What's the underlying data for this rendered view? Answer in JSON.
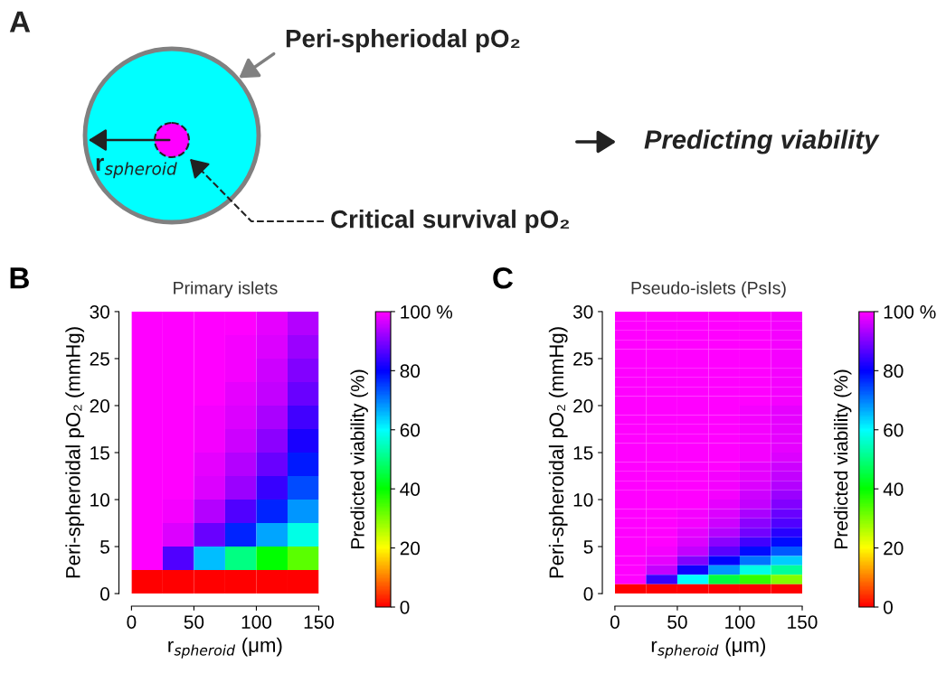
{
  "chart_data": [
    {
      "type": "other",
      "annotations": [
        "A",
        "Peri-spheriodal pO₂",
        "r$_{spheroid}$",
        "Critical survival pO₂",
        "Predicting viability"
      ]
    },
    {
      "type": "heatmap",
      "title": "Primary islets",
      "xlabel": "r$_{spheroid}$ (μm)",
      "ylabel": "Peri-spheroidal pO₂ (mmHg)",
      "clabel": "Predicted viability (%)",
      "annotations": [
        "B"
      ],
      "cells": [
        [
          100,
          100,
          100,
          100,
          98,
          94
        ],
        [
          100,
          100,
          100,
          99,
          97,
          92
        ],
        [
          100,
          100,
          100,
          99,
          96,
          90
        ],
        [
          100,
          100,
          100,
          98,
          95,
          88
        ],
        [
          100,
          100,
          99,
          97,
          93,
          85
        ],
        [
          100,
          100,
          99,
          96,
          91,
          82
        ],
        [
          100,
          100,
          98,
          94,
          88,
          78
        ],
        [
          100,
          100,
          97,
          92,
          84,
          74
        ],
        [
          100,
          99,
          94,
          86,
          77,
          68
        ],
        [
          100,
          97,
          88,
          77,
          67,
          58
        ],
        [
          100,
          86,
          65,
          50,
          40,
          33
        ],
        [
          0,
          0,
          0,
          0,
          0,
          0
        ]
      ],
      "colors": [
        "#ff0000",
        "#ffff00",
        "#00ff00",
        "#00ffff",
        "#0000ff",
        "#ff00ff"
      ],
      "xlim": [
        0,
        150
      ],
      "xticks": [
        0,
        50,
        100,
        150
      ],
      "ylim": [
        0,
        30
      ],
      "yticks": [
        0,
        5,
        10,
        15,
        20,
        25,
        30
      ],
      "clim": [
        0,
        100
      ],
      "cticks": [
        0,
        20,
        40,
        60,
        80,
        {
          "value": 100,
          "label": "100 %"
        }
      ]
    },
    {
      "type": "heatmap",
      "title": "Pseudo-islets (PsIs)",
      "xlabel": "r$_{spheroid}$ (μm)",
      "ylabel": "Peri-spheroidal pO₂ (mmHg)",
      "clabel": "Predicted viability (%)",
      "annotations": [
        "C"
      ],
      "cells": [
        [
          100,
          100,
          100,
          100,
          100,
          99
        ],
        [
          100,
          100,
          100,
          100,
          100,
          99
        ],
        [
          100,
          100,
          100,
          100,
          100,
          99
        ],
        [
          100,
          100,
          100,
          100,
          100,
          99
        ],
        [
          100,
          100,
          100,
          100,
          100,
          99
        ],
        [
          100,
          100,
          100,
          100,
          100,
          99
        ],
        [
          100,
          100,
          100,
          100,
          100,
          99
        ],
        [
          100,
          100,
          100,
          100,
          100,
          99
        ],
        [
          100,
          100,
          100,
          100,
          100,
          99
        ],
        [
          100,
          100,
          100,
          100,
          100,
          99
        ],
        [
          100,
          100,
          100,
          100,
          99,
          98
        ],
        [
          100,
          100,
          100,
          100,
          99,
          98
        ],
        [
          100,
          100,
          100,
          100,
          99,
          98
        ],
        [
          100,
          100,
          100,
          100,
          99,
          98
        ],
        [
          100,
          100,
          100,
          100,
          99,
          98
        ],
        [
          100,
          100,
          100,
          100,
          99,
          97
        ],
        [
          100,
          100,
          100,
          100,
          98,
          96
        ],
        [
          100,
          100,
          100,
          99,
          98,
          95
        ],
        [
          100,
          100,
          100,
          99,
          97,
          94
        ],
        [
          100,
          100,
          100,
          99,
          96,
          92
        ],
        [
          100,
          100,
          100,
          98,
          95,
          90
        ],
        [
          100,
          100,
          99,
          97,
          93,
          88
        ],
        [
          100,
          100,
          99,
          96,
          91,
          86
        ],
        [
          100,
          100,
          98,
          94,
          89,
          83
        ],
        [
          100,
          100,
          97,
          91,
          85,
          79
        ],
        [
          100,
          99,
          95,
          87,
          79,
          73
        ],
        [
          100,
          98,
          90,
          80,
          71,
          64
        ],
        [
          100,
          95,
          81,
          68,
          58,
          52
        ],
        [
          100,
          84,
          60,
          45,
          36,
          30
        ],
        [
          0,
          0,
          0,
          0,
          0,
          0
        ]
      ],
      "colors": [
        "#ff0000",
        "#ffff00",
        "#00ff00",
        "#00ffff",
        "#0000ff",
        "#ff00ff"
      ],
      "xlim": [
        0,
        150
      ],
      "xticks": [
        0,
        50,
        100,
        150
      ],
      "ylim": [
        0,
        30
      ],
      "yticks": [
        0,
        5,
        10,
        15,
        20,
        25,
        30
      ],
      "clim": [
        0,
        100
      ],
      "cticks": [
        0,
        20,
        40,
        60,
        80,
        {
          "value": 100,
          "label": "100 %"
        }
      ]
    }
  ]
}
